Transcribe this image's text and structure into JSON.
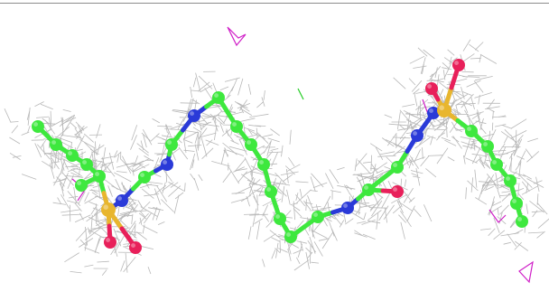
{
  "scene": {
    "kind": "electron-density-map-with-ball-and-stick-ligand",
    "background": "#ffffff"
  },
  "colors": {
    "carbon": "#3ee83e",
    "nitrogen": "#2a3ad8",
    "oxygen": "#e8205a",
    "sulfur": "#e8b62e",
    "mesh": "#b8b8b8",
    "stray_magenta": "#d020c8",
    "stray_green": "#22cc22"
  },
  "molecule": {
    "atoms": [
      {
        "el": "C"
      },
      {
        "el": "C"
      },
      {
        "el": "C"
      },
      {
        "el": "C"
      },
      {
        "el": "C"
      },
      {
        "el": "C"
      },
      {
        "el": "S"
      },
      {
        "el": "O"
      },
      {
        "el": "O"
      },
      {
        "el": "N"
      },
      {
        "el": "C"
      },
      {
        "el": "N"
      },
      {
        "el": "C"
      },
      {
        "el": "N"
      },
      {
        "el": "C"
      },
      {
        "el": "C"
      },
      {
        "el": "C"
      },
      {
        "el": "C"
      },
      {
        "el": "C"
      },
      {
        "el": "C"
      },
      {
        "el": "C"
      },
      {
        "el": "C"
      },
      {
        "el": "N"
      },
      {
        "el": "C"
      },
      {
        "el": "O"
      },
      {
        "el": "C"
      },
      {
        "el": "N"
      },
      {
        "el": "N"
      },
      {
        "el": "S"
      },
      {
        "el": "O"
      },
      {
        "el": "O"
      },
      {
        "el": "C"
      },
      {
        "el": "C"
      },
      {
        "el": "C"
      },
      {
        "el": "C"
      },
      {
        "el": "C"
      },
      {
        "el": "C"
      }
    ]
  }
}
